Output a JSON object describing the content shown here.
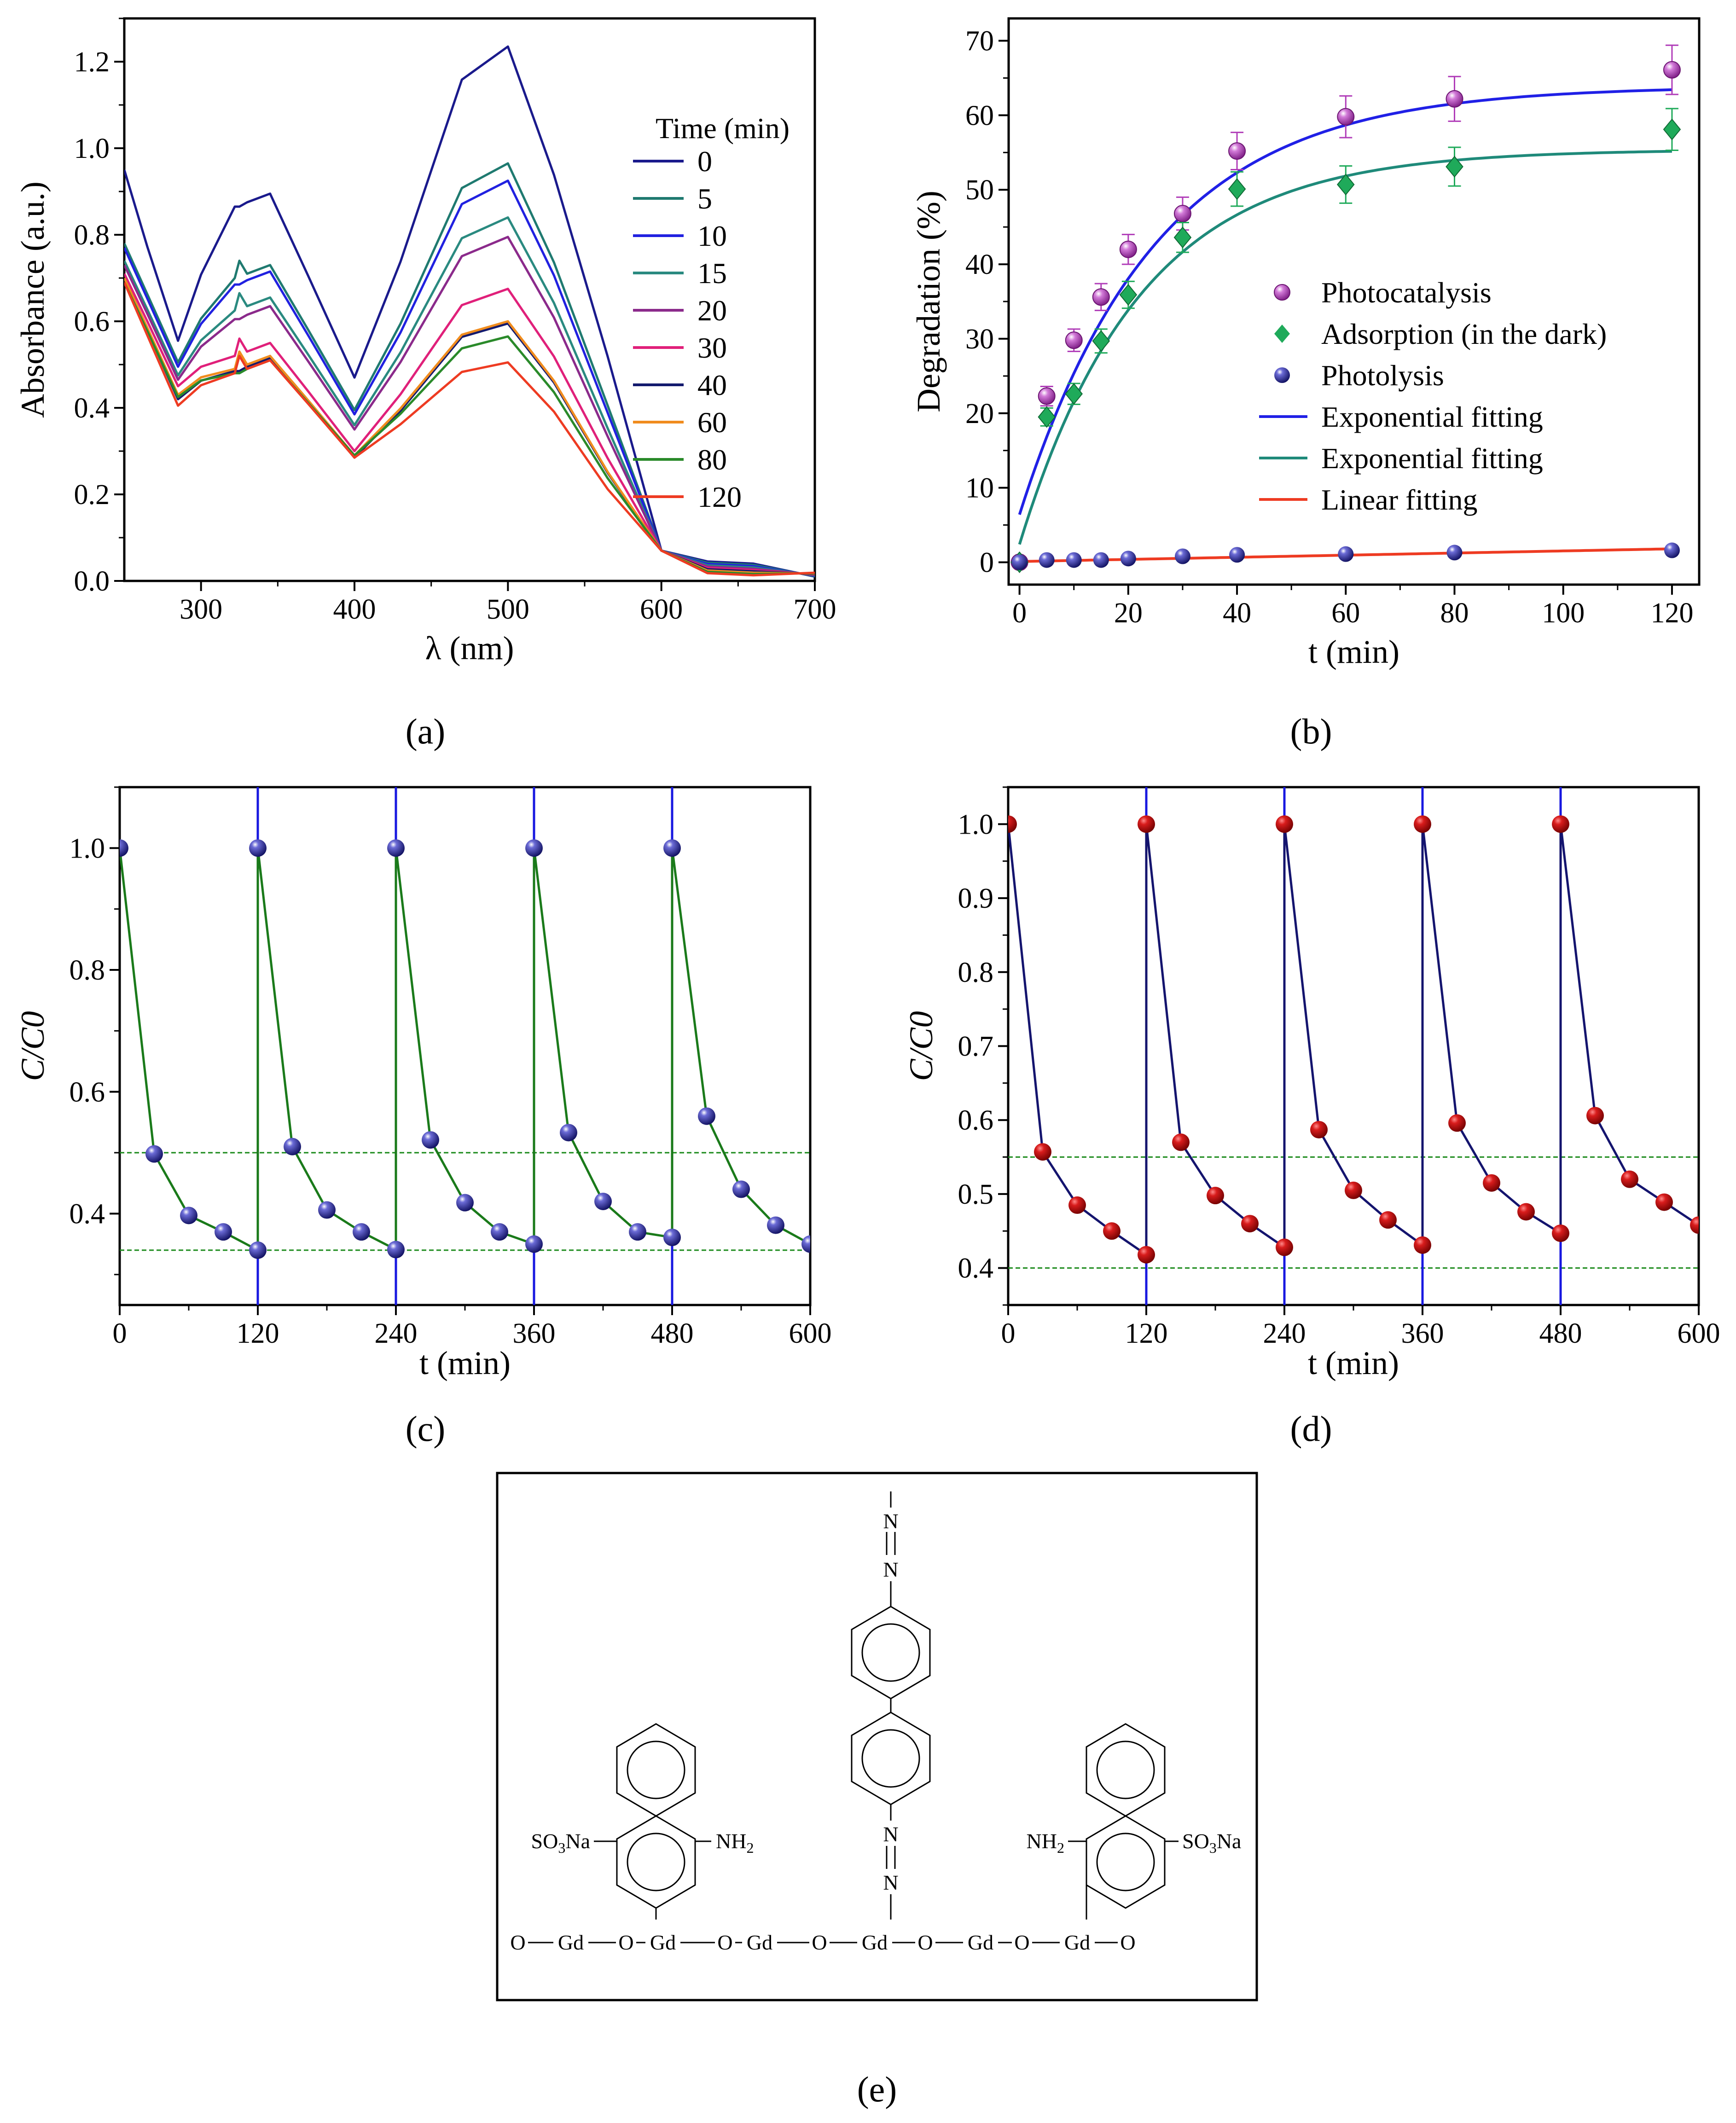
{
  "chart_data": [
    {
      "id": "a",
      "type": "line",
      "xlabel": "λ (nm)",
      "ylabel": "Absorbance (a.u.)",
      "xlim": [
        250,
        700
      ],
      "ylim": [
        0.0,
        1.3
      ],
      "xticks": [
        300,
        400,
        500,
        600,
        700
      ],
      "yticks": [
        0.0,
        0.2,
        0.4,
        0.6,
        0.8,
        1.0,
        1.2
      ],
      "legend_title": "Time (min)",
      "legend_position": "top-right",
      "series": [
        {
          "name": "0",
          "color": "#1a1a8c",
          "anchors": {
            "y250": 0.95,
            "ymin1": 0.555,
            "ymax1": 0.895,
            "ymin2": 0.47,
            "ymax2": 1.235
          }
        },
        {
          "name": "5",
          "color": "#1f7a70",
          "anchors": {
            "y250": 0.78,
            "ymin1": 0.505,
            "ymax1": 0.73,
            "ymin2": 0.395,
            "ymax2": 0.965
          }
        },
        {
          "name": "10",
          "color": "#2121e0",
          "anchors": {
            "y250": 0.77,
            "ymin1": 0.495,
            "ymax1": 0.715,
            "ymin2": 0.385,
            "ymax2": 0.925
          }
        },
        {
          "name": "15",
          "color": "#2a8a80",
          "anchors": {
            "y250": 0.74,
            "ymin1": 0.475,
            "ymax1": 0.655,
            "ymin2": 0.36,
            "ymax2": 0.84
          }
        },
        {
          "name": "20",
          "color": "#8b2a8b",
          "anchors": {
            "y250": 0.73,
            "ymin1": 0.465,
            "ymax1": 0.635,
            "ymin2": 0.35,
            "ymax2": 0.795
          }
        },
        {
          "name": "30",
          "color": "#e0207a",
          "anchors": {
            "y250": 0.71,
            "ymin1": 0.45,
            "ymax1": 0.55,
            "ymin2": 0.3,
            "ymax2": 0.675
          }
        },
        {
          "name": "40",
          "color": "#141a6e",
          "anchors": {
            "y250": 0.7,
            "ymin1": 0.42,
            "ymax1": 0.515,
            "ymin2": 0.285,
            "ymax2": 0.595
          }
        },
        {
          "name": "60",
          "color": "#f08c1e",
          "anchors": {
            "y250": 0.7,
            "ymin1": 0.43,
            "ymax1": 0.52,
            "ymin2": 0.29,
            "ymax2": 0.6
          }
        },
        {
          "name": "80",
          "color": "#2a8a2a",
          "anchors": {
            "y250": 0.69,
            "ymin1": 0.425,
            "ymax1": 0.51,
            "ymin2": 0.29,
            "ymax2": 0.565
          }
        },
        {
          "name": "120",
          "color": "#ee3b22",
          "anchors": {
            "y250": 0.69,
            "ymin1": 0.405,
            "ymax1": 0.51,
            "ymin2": 0.285,
            "ymax2": 0.505
          }
        }
      ]
    },
    {
      "id": "b",
      "type": "scatter",
      "xlabel": "t (min)",
      "ylabel": "Degradation (%)",
      "xlim": [
        -2,
        125
      ],
      "ylim": [
        -3,
        73
      ],
      "xticks": [
        0,
        20,
        40,
        60,
        80,
        100,
        120
      ],
      "yticks": [
        0,
        10,
        20,
        30,
        40,
        50,
        60,
        70
      ],
      "legend_position": "center-right",
      "series": [
        {
          "name": "Photocatalysis",
          "marker": "circle",
          "color": "#b03cb8",
          "x": [
            0,
            5,
            10,
            15,
            20,
            30,
            40,
            60,
            80,
            120
          ],
          "y": [
            0,
            22.3,
            29.8,
            35.6,
            42.0,
            46.8,
            55.2,
            59.8,
            62.2,
            66.1
          ],
          "err": [
            0,
            1.3,
            1.5,
            1.8,
            2.0,
            2.2,
            2.5,
            2.8,
            3.0,
            3.3
          ]
        },
        {
          "name": "Adsorption (in the dark)",
          "marker": "diamond",
          "color": "#1faa5a",
          "x": [
            0,
            5,
            10,
            15,
            20,
            30,
            40,
            60,
            80,
            120
          ],
          "y": [
            0,
            19.5,
            22.6,
            29.7,
            35.9,
            43.6,
            50.1,
            50.7,
            53.1,
            58.1
          ],
          "err": [
            0,
            1.2,
            1.4,
            1.6,
            1.8,
            2.0,
            2.3,
            2.5,
            2.6,
            2.8
          ]
        },
        {
          "name": "Photolysis",
          "marker": "ball",
          "color": "#1a1a8c",
          "x": [
            0,
            5,
            10,
            15,
            20,
            30,
            40,
            60,
            80,
            120
          ],
          "y": [
            0,
            0.3,
            0.3,
            0.3,
            0.5,
            0.8,
            1.0,
            1.1,
            1.3,
            1.6
          ]
        },
        {
          "name": "Exponential fitting",
          "fit": "exp",
          "color": "#2020e6",
          "params": {
            "a": 63.9,
            "b": 57.5,
            "k": 0.04
          }
        },
        {
          "name": "Exponential fitting",
          "fit": "exp",
          "color": "#1f8a7a",
          "params": {
            "a": 55.4,
            "b": 53.0,
            "k": 0.045
          }
        },
        {
          "name": "Linear fitting",
          "fit": "linear",
          "color": "#ee3b22",
          "params": {
            "m": 0.0142,
            "c": 0.1
          }
        }
      ]
    },
    {
      "id": "c",
      "type": "line",
      "xlabel": "t (min)",
      "ylabel": "C/C0",
      "xlim": [
        0,
        600
      ],
      "ylim": [
        0.25,
        1.1
      ],
      "xticks": [
        0,
        120,
        240,
        360,
        480,
        600
      ],
      "yticks": [
        0.4,
        0.6,
        0.8,
        1.0
      ],
      "hlines": [
        0.5,
        0.34
      ],
      "vlines": [
        120,
        240,
        360,
        480
      ],
      "line_color": "#1a7a1a",
      "marker_color": "#14146e",
      "cycles": [
        {
          "x": [
            0,
            30,
            60,
            90,
            120
          ],
          "y": [
            1.0,
            0.498,
            0.397,
            0.37,
            0.34
          ]
        },
        {
          "x": [
            120,
            150,
            180,
            210,
            240
          ],
          "y": [
            1.0,
            0.51,
            0.406,
            0.37,
            0.341
          ]
        },
        {
          "x": [
            240,
            270,
            300,
            330,
            360
          ],
          "y": [
            1.0,
            0.521,
            0.418,
            0.37,
            0.35
          ]
        },
        {
          "x": [
            360,
            390,
            420,
            450,
            480
          ],
          "y": [
            1.0,
            0.533,
            0.42,
            0.37,
            0.361
          ]
        },
        {
          "x": [
            480,
            510,
            540,
            570,
            600
          ],
          "y": [
            1.0,
            0.56,
            0.44,
            0.381,
            0.35
          ]
        }
      ]
    },
    {
      "id": "d",
      "type": "line",
      "xlabel": "t (min)",
      "ylabel": "C/C0",
      "xlim": [
        0,
        600
      ],
      "ylim": [
        0.35,
        1.05
      ],
      "xticks": [
        0,
        120,
        240,
        360,
        480,
        600
      ],
      "yticks": [
        0.4,
        0.5,
        0.6,
        0.7,
        0.8,
        0.9,
        1.0
      ],
      "hlines": [
        0.55,
        0.4
      ],
      "vlines": [
        120,
        240,
        360,
        480
      ],
      "line_color": "#14146e",
      "marker_color": "#c81414",
      "cycles": [
        {
          "x": [
            0,
            30,
            60,
            90,
            120
          ],
          "y": [
            1.0,
            0.557,
            0.485,
            0.45,
            0.418
          ]
        },
        {
          "x": [
            120,
            150,
            180,
            210,
            240
          ],
          "y": [
            1.0,
            0.57,
            0.498,
            0.46,
            0.428
          ]
        },
        {
          "x": [
            240,
            270,
            300,
            330,
            360
          ],
          "y": [
            1.0,
            0.587,
            0.505,
            0.465,
            0.431
          ]
        },
        {
          "x": [
            360,
            390,
            420,
            450,
            480
          ],
          "y": [
            1.0,
            0.596,
            0.515,
            0.476,
            0.447
          ]
        },
        {
          "x": [
            480,
            510,
            540,
            570,
            600
          ],
          "y": [
            1.0,
            0.606,
            0.52,
            0.489,
            0.458
          ]
        }
      ]
    }
  ],
  "captions": {
    "a": "(a)",
    "b": "(b)",
    "c": "(c)",
    "d": "(d)",
    "e": "(e)"
  },
  "structure": {
    "n": "N",
    "so3na": "SO3Na",
    "nh2": "NH2",
    "gd_chain": [
      "O",
      "Gd",
      "O",
      "Gd",
      "O",
      "Gd",
      "O",
      "Gd",
      "O",
      "Gd",
      "O",
      "Gd",
      "O"
    ]
  }
}
